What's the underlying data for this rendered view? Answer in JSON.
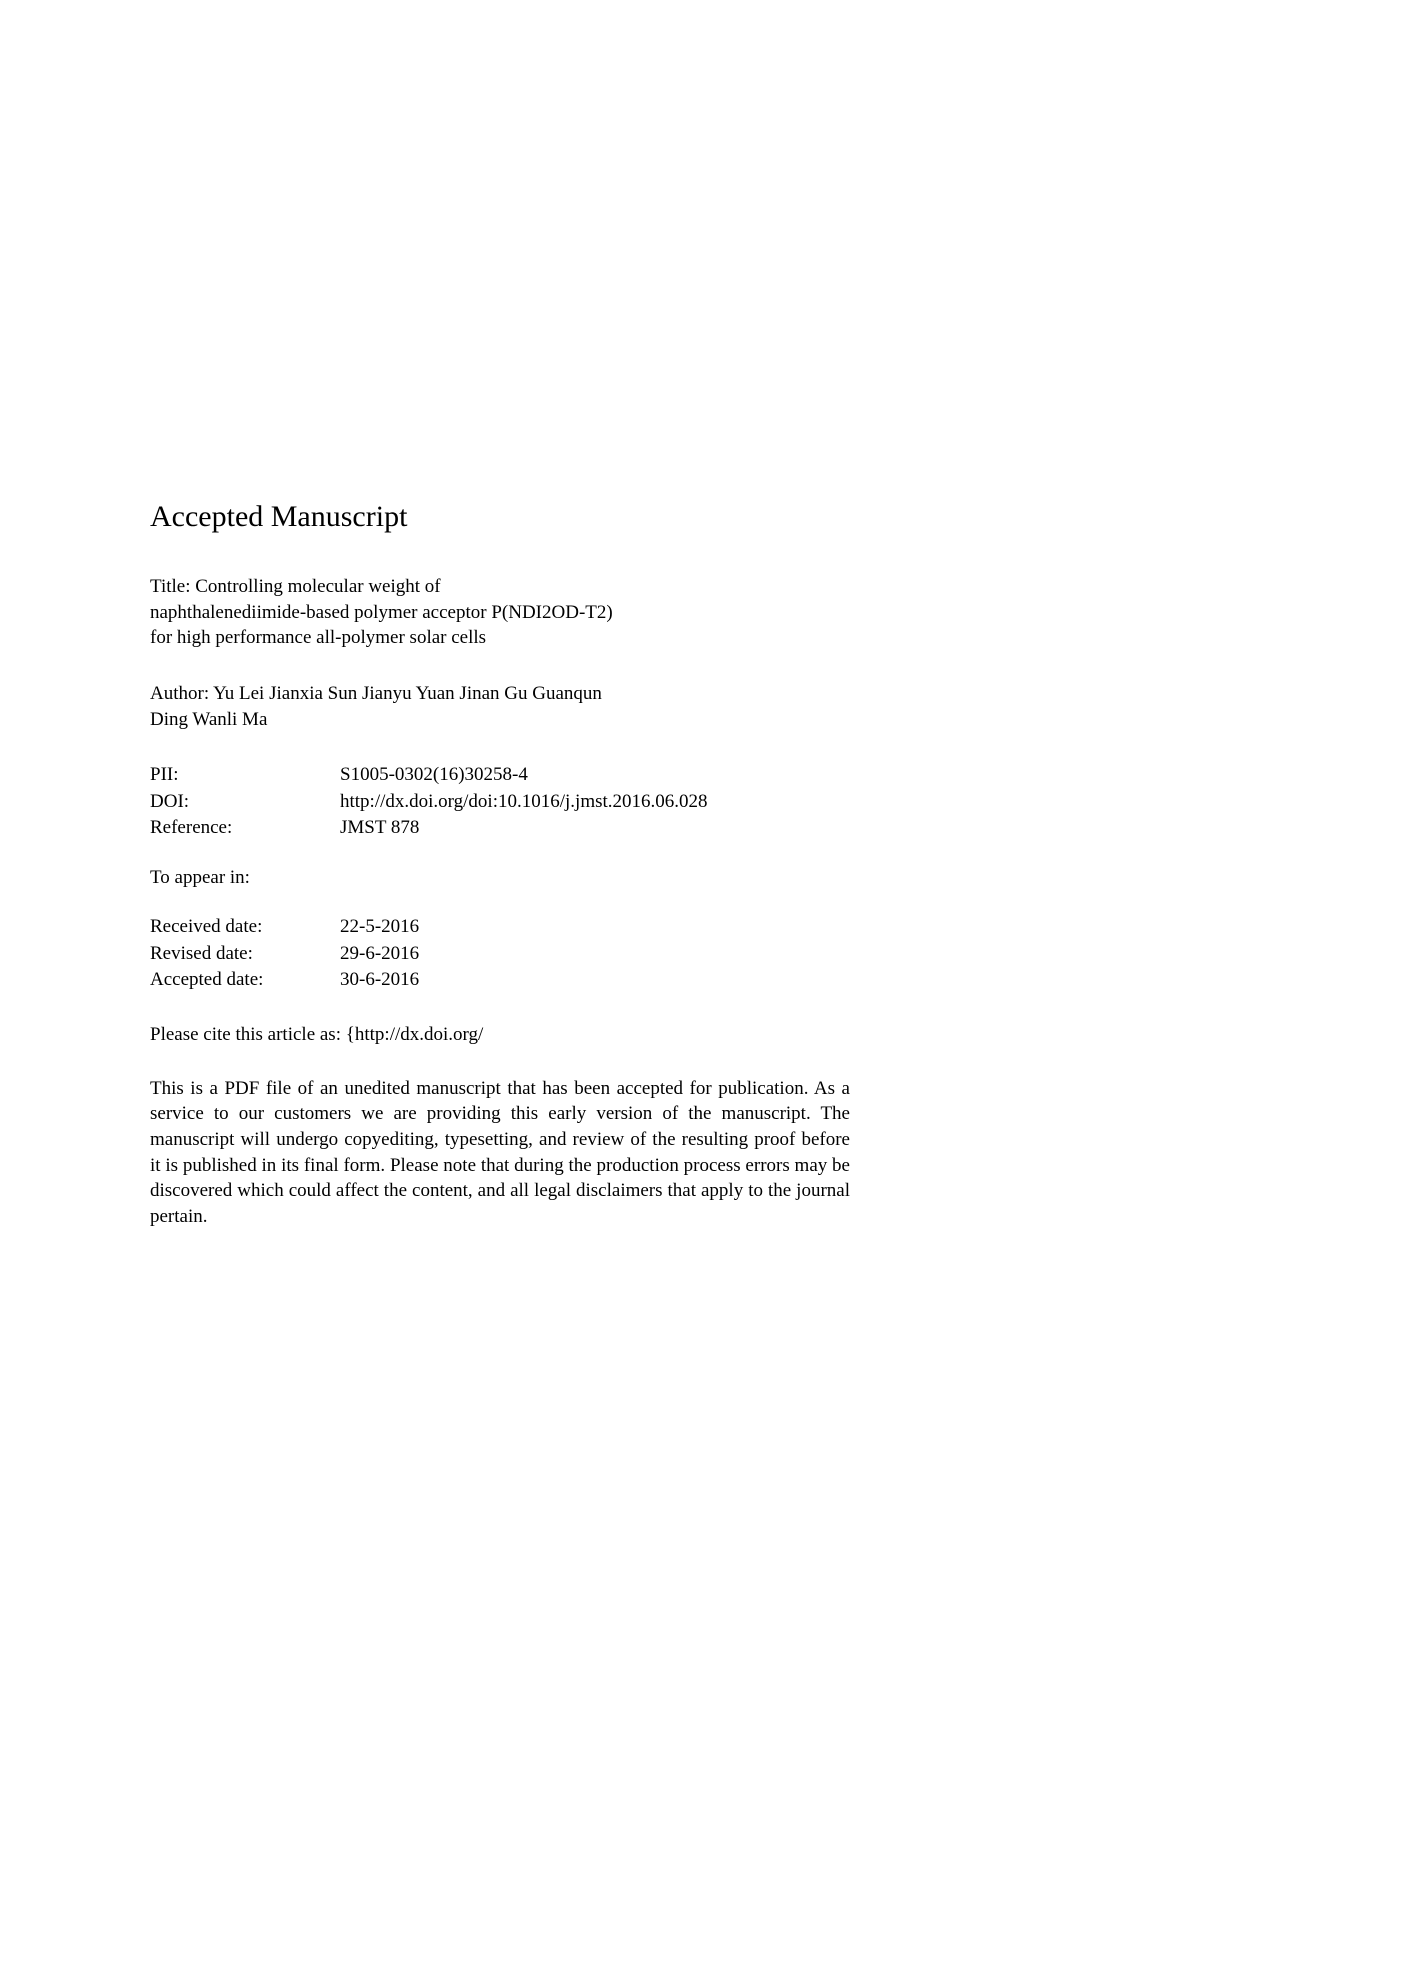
{
  "page": {
    "background_color": "#ffffff",
    "text_color": "#000000",
    "font_family": "Georgia, 'Times New Roman', serif",
    "heading_fontsize": 30,
    "body_fontsize": 19
  },
  "heading": "Accepted Manuscript",
  "title": {
    "prefix": "Title:",
    "line1": "Controlling molecular weight of",
    "line2": "naphthalenediimide-based polymer acceptor P(NDI2OD-T2)",
    "line3": "for high performance all-polymer solar cells"
  },
  "author": {
    "prefix": "Author:",
    "line1": "Yu Lei Jianxia Sun Jianyu Yuan Jinan Gu Guanqun",
    "line2": "Ding Wanli Ma"
  },
  "meta": {
    "pii_label": "PII:",
    "pii_value": "S1005-0302(16)30258-4",
    "doi_label": "DOI:",
    "doi_value": "http://dx.doi.org/doi:10.1016/j.jmst.2016.06.028",
    "ref_label": "Reference:",
    "ref_value": "JMST 878"
  },
  "appear_label": "To appear in:",
  "dates": {
    "received_label": "Received date:",
    "received_value": "22-5-2016",
    "revised_label": "Revised date:",
    "revised_value": "29-6-2016",
    "accepted_label": "Accepted date:",
    "accepted_value": "30-6-2016"
  },
  "cite": "Please cite this article as: {http://dx.doi.org/",
  "disclaimer": "This is a PDF file of an unedited manuscript that has been accepted for publication. As a service to our customers we are providing this early version of the manuscript. The manuscript will undergo copyediting, typesetting, and review of the resulting proof before it is published in its final form. Please note that during the production process errors may be discovered which could affect the content, and all legal disclaimers that apply to the journal pertain."
}
